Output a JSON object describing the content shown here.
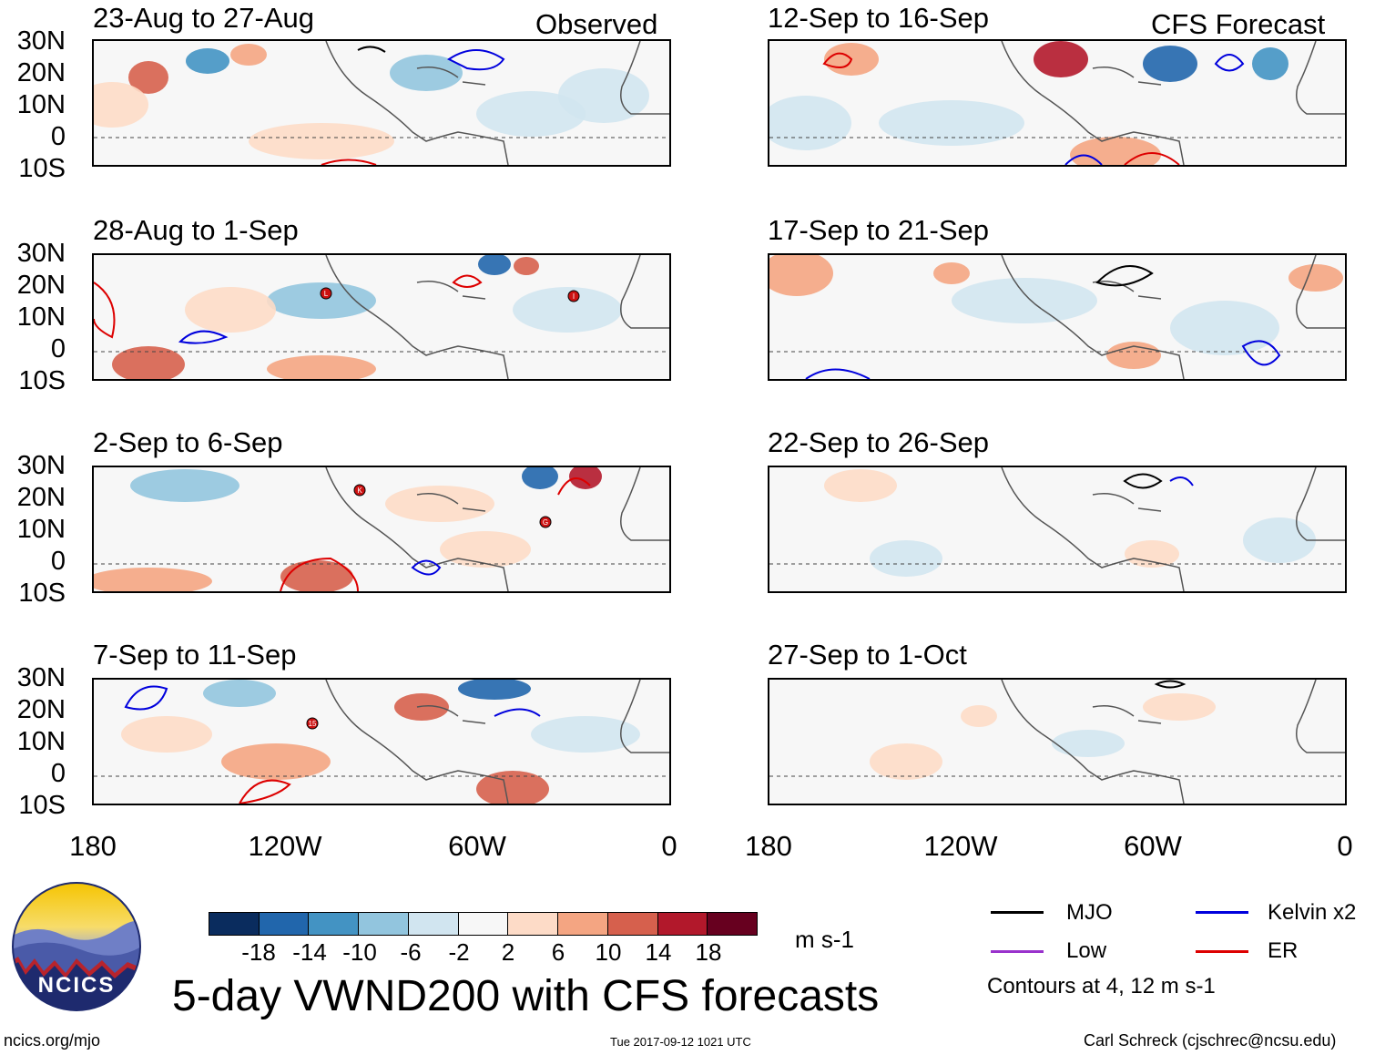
{
  "observed_label": "Observed",
  "forecast_label": "CFS Forecast",
  "panels_left": [
    {
      "title": "23-Aug to 27-Aug"
    },
    {
      "title": "28-Aug to 1-Sep"
    },
    {
      "title": "2-Sep to 6-Sep"
    },
    {
      "title": "7-Sep to 11-Sep"
    }
  ],
  "panels_right": [
    {
      "title": "12-Sep to 16-Sep"
    },
    {
      "title": "17-Sep to 21-Sep"
    },
    {
      "title": "22-Sep to 26-Sep"
    },
    {
      "title": "27-Sep to 1-Oct"
    }
  ],
  "y_labels": [
    "30N",
    "20N",
    "10N",
    "0",
    "10S"
  ],
  "x_labels": [
    "180",
    "120W",
    "60W",
    "0"
  ],
  "colorbar": {
    "labels": [
      "-18",
      "-14",
      "-10",
      "-6",
      "-2",
      "2",
      "6",
      "10",
      "14",
      "18"
    ],
    "colors": [
      "#0a2c5e",
      "#2166ac",
      "#4393c3",
      "#92c5de",
      "#d1e5f0",
      "#f7f7f7",
      "#fddbc7",
      "#f4a582",
      "#d6604d",
      "#b2182b",
      "#67001f"
    ],
    "units": "m s-1"
  },
  "legend": {
    "items": [
      {
        "label": "MJO",
        "color": "#000000"
      },
      {
        "label": "Kelvin x2",
        "color": "#0000dd"
      },
      {
        "label": "Low",
        "color": "#9932cc"
      },
      {
        "label": "ER",
        "color": "#dd0000"
      }
    ],
    "contours_note": "Contours at 4, 12 m s-1"
  },
  "storm_markers": [
    "L",
    "I",
    "K",
    "G",
    "15"
  ],
  "logo_text": "NCICS",
  "main_title": "5-day VWND200 with CFS forecasts",
  "footer": {
    "left": "ncics.org/mjo",
    "center": "Tue 2017-09-12 1021 UTC",
    "right": "Carl Schreck (cjschrec@ncsu.edu)"
  }
}
